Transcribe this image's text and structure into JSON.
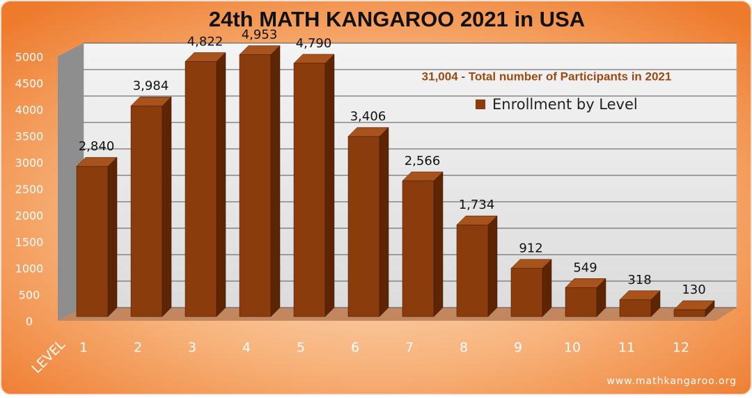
{
  "chart_data": {
    "type": "bar3d",
    "title": "24th MATH KANGAROO 2021 in USA",
    "annotation": "31,004 - Total number of Participants in 2021",
    "x_label": "LEVEL",
    "footer": "www.mathkangaroo.org",
    "categories": [
      "1",
      "2",
      "3",
      "4",
      "5",
      "6",
      "7",
      "8",
      "9",
      "10",
      "11",
      "12"
    ],
    "series": [
      {
        "name": "Enrollment by Level",
        "color": "#8b3c0c",
        "values": [
          2840,
          3984,
          4822,
          4953,
          4790,
          3406,
          2566,
          1734,
          912,
          549,
          318,
          130
        ],
        "value_labels": [
          "2,840",
          "3,984",
          "4,822",
          "4,953",
          "4,790",
          "3,406",
          "2,566",
          "1,734",
          "912",
          "549",
          "318",
          "130"
        ]
      }
    ],
    "ylim": [
      0,
      5000
    ],
    "yticks": [
      0,
      500,
      1000,
      1500,
      2000,
      2500,
      3000,
      3500,
      4000,
      4500,
      5000
    ],
    "grid": true
  }
}
